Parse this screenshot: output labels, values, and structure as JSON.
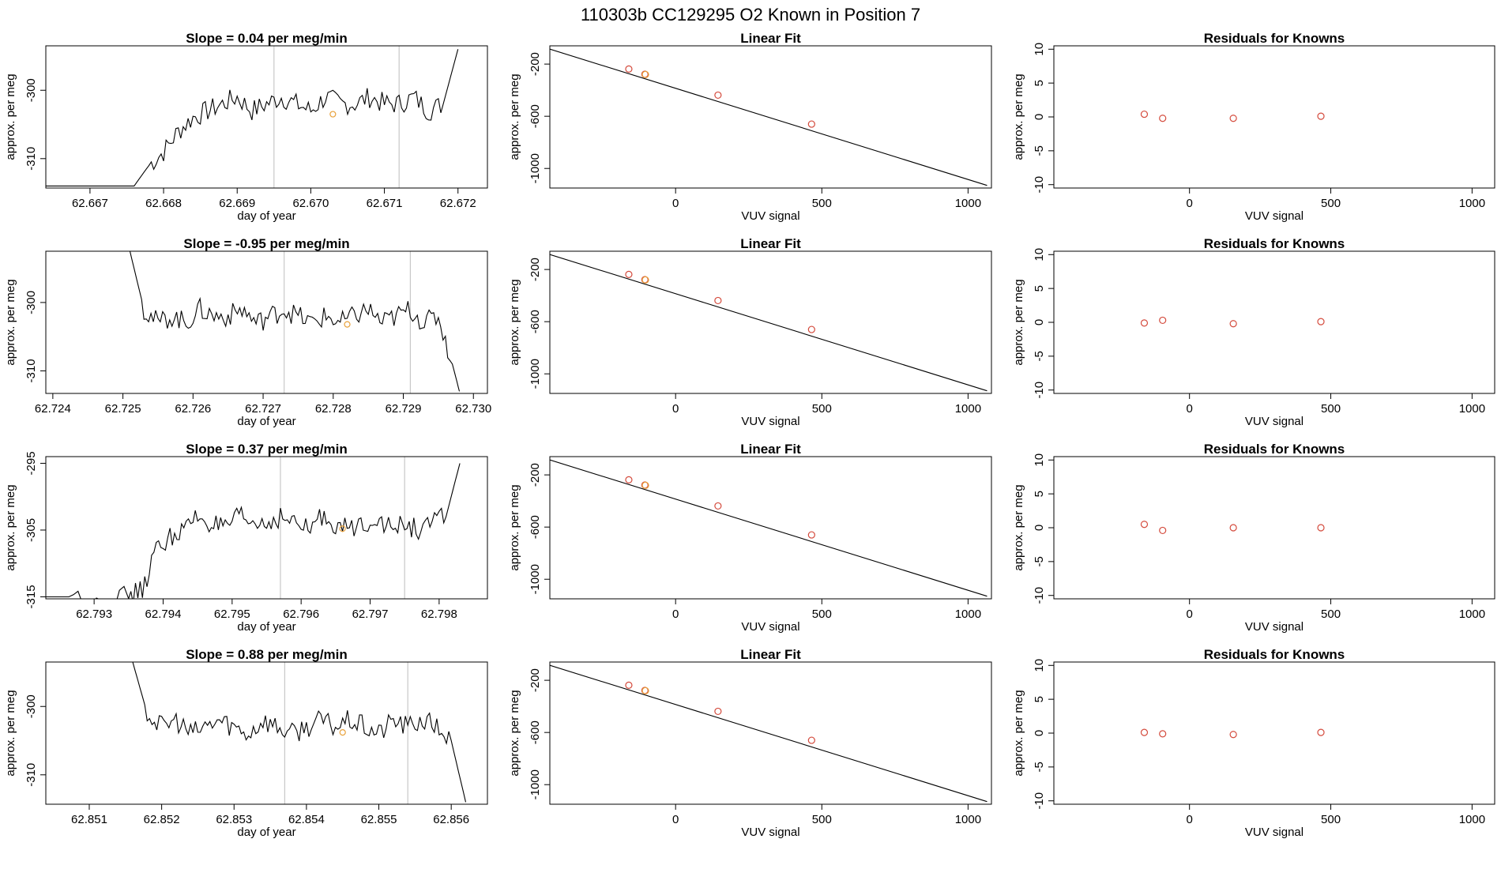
{
  "page": {
    "title": "110303b      CC129295    O2 Known in Position  7"
  },
  "colors": {
    "trace": "#000000",
    "fit_line": "#000000",
    "known_point": "#d44a3c",
    "highlight_point": "#e8a13a",
    "marker_line": "#c8c8c8",
    "frame": "#000000"
  },
  "chart_data": [
    {
      "type": "line",
      "title": "Slope =  0.04  per meg/min",
      "xlabel": "day of year",
      "ylabel": "approx. per meg",
      "xlim": [
        62.6664,
        62.6724
      ],
      "ylim": [
        -314.3,
        -293.5
      ],
      "xticks": [
        62.667,
        62.668,
        62.669,
        62.67,
        62.671,
        62.672
      ],
      "xtick_labels": [
        "62.667",
        "62.668",
        "62.669",
        "62.670",
        "62.671",
        "62.672"
      ],
      "yticks": [
        -300,
        -310
      ],
      "ytick_labels": [
        "-300",
        "-310"
      ],
      "vlines": [
        62.6695,
        62.6712
      ],
      "series_start": 62.6676,
      "series_end": 62.672,
      "x": [
        62.6676,
        62.6678,
        62.668,
        62.6682,
        62.6684,
        62.6686,
        62.6688,
        62.669,
        62.6692,
        62.6694,
        62.6696,
        62.6698,
        62.67,
        62.6702,
        62.6704,
        62.6706,
        62.6708,
        62.671,
        62.6712,
        62.6714,
        62.6716,
        62.6718,
        62.672
      ],
      "y": [
        -314,
        -311,
        -309,
        -306,
        -304,
        -303,
        -302,
        -301,
        -303,
        -302,
        -301,
        -302,
        -303,
        -301,
        -302,
        -302,
        -301,
        -302,
        -302,
        -301,
        -303,
        -302,
        -294
      ],
      "highlight": {
        "x": 62.6703,
        "y": -303.5
      }
    },
    {
      "type": "scatter",
      "title": "Linear Fit",
      "xlabel": "VUV signal",
      "ylabel": "approx. per meg",
      "xlim": [
        -430,
        1080
      ],
      "ylim": [
        -1150,
        -60
      ],
      "xticks": [
        0,
        500,
        1000
      ],
      "xtick_labels": [
        "0",
        "500",
        "1000"
      ],
      "yticks": [
        -200,
        -600,
        -1000
      ],
      "ytick_labels": [
        "-200",
        "-600",
        "-1000"
      ],
      "fit_line": {
        "x": [
          -430,
          1065
        ],
        "y": [
          -85,
          -1130
        ]
      },
      "points": {
        "x": [
          -160,
          -105,
          145,
          465
        ],
        "y": [
          -238,
          -278,
          -438,
          -660
        ]
      },
      "highlight": {
        "x": -103,
        "y": -280
      }
    },
    {
      "type": "scatter",
      "title": "Residuals for Knowns",
      "xlabel": "VUV signal",
      "ylabel": "approx. per meg",
      "xlim": [
        -480,
        1080
      ],
      "ylim": [
        -10.5,
        10.5
      ],
      "xticks": [
        0,
        500,
        1000
      ],
      "xtick_labels": [
        "0",
        "500",
        "1000"
      ],
      "yticks": [
        10,
        5,
        0,
        -5,
        -10
      ],
      "ytick_labels": [
        "10",
        "5",
        "0",
        "-5",
        "-10"
      ],
      "points": {
        "x": [
          -160,
          -95,
          155,
          465
        ],
        "y": [
          0.4,
          -0.2,
          -0.2,
          0.1
        ]
      }
    },
    {
      "type": "line",
      "title": "Slope =  -0.95  per meg/min",
      "xlabel": "day of year",
      "ylabel": "approx. per meg",
      "xlim": [
        62.7239,
        62.7302
      ],
      "ylim": [
        -313.3,
        -292.5
      ],
      "xticks": [
        62.724,
        62.725,
        62.726,
        62.727,
        62.728,
        62.729,
        62.73
      ],
      "xtick_labels": [
        "62.724",
        "62.725",
        "62.726",
        "62.727",
        "62.728",
        "62.729",
        "62.730"
      ],
      "yticks": [
        -300,
        -310
      ],
      "ytick_labels": [
        "-300",
        "-310"
      ],
      "vlines": [
        62.7273,
        62.7291
      ],
      "series_start": 62.7251,
      "series_end": 62.7298,
      "x": [
        62.7251,
        62.7253,
        62.7255,
        62.7257,
        62.7259,
        62.7261,
        62.7263,
        62.7265,
        62.7267,
        62.7269,
        62.7271,
        62.7273,
        62.7275,
        62.7277,
        62.7279,
        62.7281,
        62.7283,
        62.7285,
        62.7287,
        62.7289,
        62.7291,
        62.7293,
        62.7295,
        62.7297,
        62.7298
      ],
      "y": [
        -292.5,
        -301,
        -303,
        -302,
        -303,
        -301,
        -302,
        -302,
        -301,
        -303,
        -302,
        -301,
        -302,
        -303,
        -302,
        -303,
        -302,
        -301,
        -303,
        -302,
        -301,
        -303,
        -302,
        -309,
        -313
      ],
      "highlight": {
        "x": 62.7282,
        "y": -303.2
      }
    },
    {
      "type": "scatter",
      "title": "Linear Fit",
      "xlabel": "VUV signal",
      "ylabel": "approx. per meg",
      "xlim": [
        -430,
        1080
      ],
      "ylim": [
        -1150,
        -60
      ],
      "xticks": [
        0,
        500,
        1000
      ],
      "xtick_labels": [
        "0",
        "500",
        "1000"
      ],
      "yticks": [
        -200,
        -600,
        -1000
      ],
      "ytick_labels": [
        "-200",
        "-600",
        "-1000"
      ],
      "fit_line": {
        "x": [
          -430,
          1065
        ],
        "y": [
          -85,
          -1130
        ]
      },
      "points": {
        "x": [
          -160,
          -105,
          145,
          465
        ],
        "y": [
          -238,
          -278,
          -438,
          -660
        ]
      },
      "highlight": {
        "x": -103,
        "y": -280
      }
    },
    {
      "type": "scatter",
      "title": "Residuals for Knowns",
      "xlabel": "VUV signal",
      "ylabel": "approx. per meg",
      "xlim": [
        -480,
        1080
      ],
      "ylim": [
        -10.5,
        10.5
      ],
      "xticks": [
        0,
        500,
        1000
      ],
      "xtick_labels": [
        "0",
        "500",
        "1000"
      ],
      "yticks": [
        10,
        5,
        0,
        -5,
        -10
      ],
      "ytick_labels": [
        "10",
        "5",
        "0",
        "-5",
        "-10"
      ],
      "points": {
        "x": [
          -160,
          -95,
          155,
          465
        ],
        "y": [
          -0.1,
          0.3,
          -0.2,
          0.1
        ]
      }
    },
    {
      "type": "line",
      "title": "Slope =  0.37  per meg/min",
      "xlabel": "day of year",
      "ylabel": "approx. per meg",
      "xlim": [
        62.7923,
        62.7987
      ],
      "ylim": [
        -315.3,
        -294.0
      ],
      "xticks": [
        62.793,
        62.794,
        62.795,
        62.796,
        62.797,
        62.798
      ],
      "xtick_labels": [
        "62.793",
        "62.794",
        "62.795",
        "62.796",
        "62.797",
        "62.798"
      ],
      "yticks": [
        -295,
        -305,
        -315
      ],
      "ytick_labels": [
        "-295",
        "-305",
        "-315"
      ],
      "vlines": [
        62.7957,
        62.7975
      ],
      "series_start": 62.7923,
      "series_end": 62.7983,
      "x": [
        62.7923,
        62.7927,
        62.7931,
        62.7935,
        62.7937,
        62.7939,
        62.7941,
        62.7943,
        62.7945,
        62.7947,
        62.7949,
        62.7951,
        62.7953,
        62.7955,
        62.7957,
        62.7959,
        62.7961,
        62.7963,
        62.7965,
        62.7967,
        62.7969,
        62.7971,
        62.7973,
        62.7975,
        62.7977,
        62.7979,
        62.7981,
        62.7983
      ],
      "y": [
        -315,
        -315,
        -315,
        -315,
        -314,
        -308,
        -306,
        -305,
        -303,
        -304,
        -305,
        -303,
        -304,
        -304,
        -303,
        -304,
        -305,
        -303,
        -304,
        -305,
        -304,
        -303,
        -305,
        -304,
        -305,
        -304,
        -303,
        -295
      ],
      "highlight": {
        "x": 62.7966,
        "y": -304.8
      }
    },
    {
      "type": "scatter",
      "title": "Linear Fit",
      "xlabel": "VUV signal",
      "ylabel": "approx. per meg",
      "xlim": [
        -430,
        1080
      ],
      "ylim": [
        -1150,
        -60
      ],
      "xticks": [
        0,
        500,
        1000
      ],
      "xtick_labels": [
        "0",
        "500",
        "1000"
      ],
      "yticks": [
        -200,
        -600,
        -1000
      ],
      "ytick_labels": [
        "-200",
        "-600",
        "-1000"
      ],
      "fit_line": {
        "x": [
          -430,
          1065
        ],
        "y": [
          -85,
          -1130
        ]
      },
      "points": {
        "x": [
          -160,
          -105,
          145,
          465
        ],
        "y": [
          -238,
          -278,
          -438,
          -660
        ]
      },
      "highlight": {
        "x": -103,
        "y": -280
      }
    },
    {
      "type": "scatter",
      "title": "Residuals for Knowns",
      "xlabel": "VUV signal",
      "ylabel": "approx. per meg",
      "xlim": [
        -480,
        1080
      ],
      "ylim": [
        -10.5,
        10.5
      ],
      "xticks": [
        0,
        500,
        1000
      ],
      "xtick_labels": [
        "0",
        "500",
        "1000"
      ],
      "yticks": [
        10,
        5,
        0,
        -5,
        -10
      ],
      "ytick_labels": [
        "10",
        "5",
        "0",
        "-5",
        "-10"
      ],
      "points": {
        "x": [
          -160,
          -95,
          155,
          465
        ],
        "y": [
          0.5,
          -0.4,
          0.0,
          0.0
        ]
      }
    },
    {
      "type": "line",
      "title": "Slope =  0.88  per meg/min",
      "xlabel": "day of year",
      "ylabel": "approx. per meg",
      "xlim": [
        62.8504,
        62.8565
      ],
      "ylim": [
        -314.3,
        -293.5
      ],
      "xticks": [
        62.851,
        62.852,
        62.853,
        62.854,
        62.855,
        62.856
      ],
      "xtick_labels": [
        "62.851",
        "62.852",
        "62.853",
        "62.854",
        "62.855",
        "62.856"
      ],
      "yticks": [
        -300,
        -310
      ],
      "ytick_labels": [
        "-300",
        "-310"
      ],
      "vlines": [
        62.8537,
        62.8554
      ],
      "series_start": 62.8516,
      "series_end": 62.8562,
      "x": [
        62.8516,
        62.8518,
        62.852,
        62.8522,
        62.8524,
        62.8526,
        62.8528,
        62.853,
        62.8532,
        62.8534,
        62.8536,
        62.8538,
        62.854,
        62.8542,
        62.8544,
        62.8546,
        62.8548,
        62.855,
        62.8552,
        62.8554,
        62.8556,
        62.8558,
        62.856,
        62.8562
      ],
      "y": [
        -293.5,
        -301,
        -303,
        -302,
        -304,
        -303,
        -302,
        -303,
        -304,
        -302,
        -303,
        -304,
        -303,
        -302,
        -303,
        -302,
        -303,
        -304,
        -302,
        -303,
        -302,
        -303,
        -305,
        -314
      ],
      "highlight": {
        "x": 62.8545,
        "y": -303.8
      }
    },
    {
      "type": "scatter",
      "title": "Linear Fit",
      "xlabel": "VUV signal",
      "ylabel": "approx. per meg",
      "xlim": [
        -430,
        1080
      ],
      "ylim": [
        -1150,
        -60
      ],
      "xticks": [
        0,
        500,
        1000
      ],
      "xtick_labels": [
        "0",
        "500",
        "1000"
      ],
      "yticks": [
        -200,
        -600,
        -1000
      ],
      "ytick_labels": [
        "-200",
        "-600",
        "-1000"
      ],
      "fit_line": {
        "x": [
          -430,
          1065
        ],
        "y": [
          -85,
          -1130
        ]
      },
      "points": {
        "x": [
          -160,
          -105,
          145,
          465
        ],
        "y": [
          -238,
          -278,
          -438,
          -660
        ]
      },
      "highlight": {
        "x": -103,
        "y": -280
      }
    },
    {
      "type": "scatter",
      "title": "Residuals for Knowns",
      "xlabel": "VUV signal",
      "ylabel": "approx. per meg",
      "xlim": [
        -480,
        1080
      ],
      "ylim": [
        -10.5,
        10.5
      ],
      "xticks": [
        0,
        500,
        1000
      ],
      "xtick_labels": [
        "0",
        "500",
        "1000"
      ],
      "yticks": [
        10,
        5,
        0,
        -5,
        -10
      ],
      "ytick_labels": [
        "10",
        "5",
        "0",
        "-5",
        "-10"
      ],
      "points": {
        "x": [
          -160,
          -95,
          155,
          465
        ],
        "y": [
          0.1,
          -0.1,
          -0.2,
          0.1
        ]
      }
    }
  ]
}
